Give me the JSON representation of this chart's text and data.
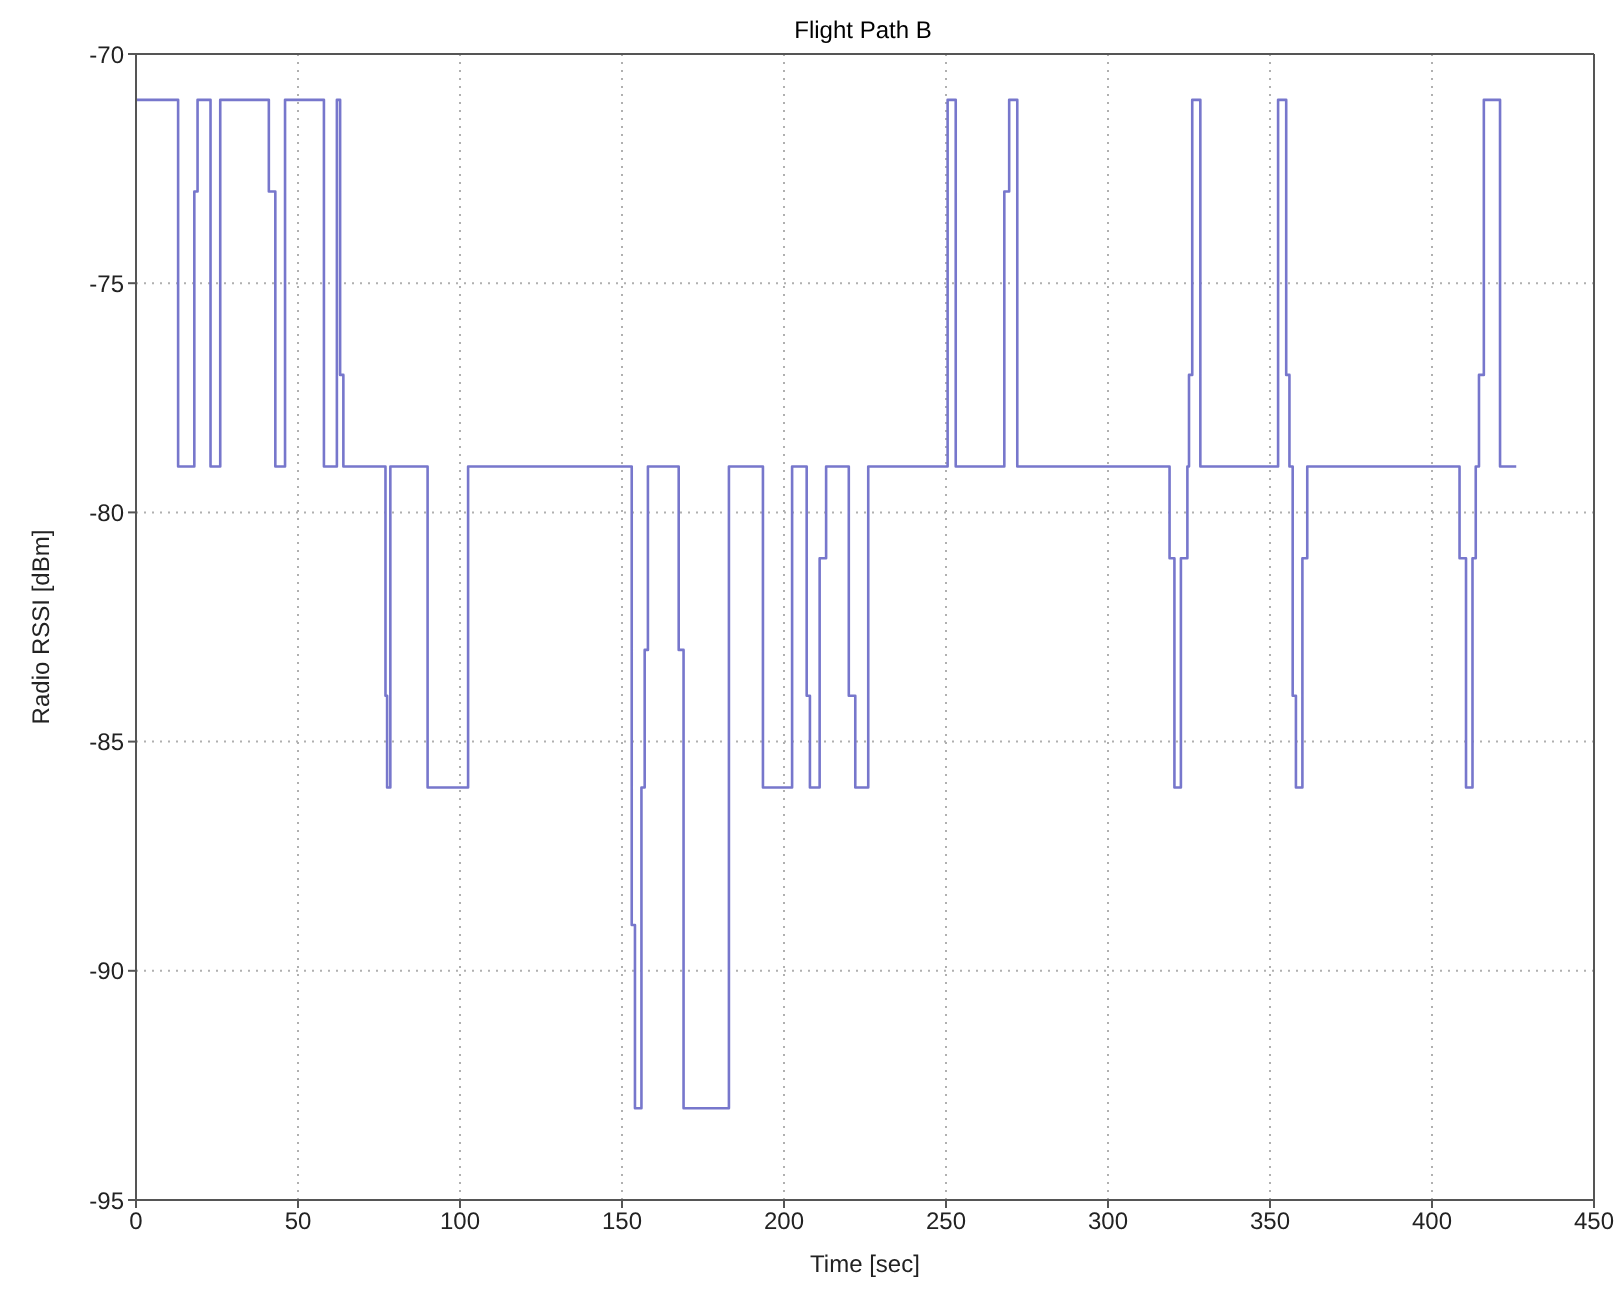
{
  "chart_data": {
    "type": "step",
    "title": "Flight Path B",
    "xlabel": "Time  [sec]",
    "ylabel": "Radio RSSI  [dBm]",
    "x": [
      0,
      13,
      18,
      19,
      23,
      26,
      41,
      43,
      46,
      58,
      62,
      63,
      64,
      77,
      77.5,
      78.5,
      90,
      102.5,
      153,
      154,
      156,
      157,
      158,
      167.5,
      169,
      183,
      193.5,
      202.5,
      207,
      208,
      211,
      213,
      220,
      222,
      226,
      250.5,
      253,
      268,
      269.5,
      272,
      319,
      320.5,
      322.5,
      324.5,
      325,
      326,
      328.5,
      352.5,
      355,
      356,
      357,
      358,
      360,
      361.5,
      408.5,
      410.5,
      412.5,
      413.5,
      414.5,
      416,
      421,
      426
    ],
    "values": [
      -71,
      -79,
      -73,
      -71,
      -79,
      -71,
      -73,
      -79,
      -71,
      -79,
      -71,
      -77,
      -79,
      -84,
      -86,
      -79,
      -86,
      -79,
      -89,
      -93,
      -86,
      -83,
      -79,
      -83,
      -93,
      -79,
      -86,
      -79,
      -84,
      -86,
      -81,
      -79,
      -84,
      -86,
      -79,
      -71,
      -79,
      -73,
      -71,
      -79,
      -81,
      -86,
      -81,
      -79,
      -77,
      -71,
      -79,
      -71,
      -77,
      -79,
      -84,
      -86,
      -81,
      -79,
      -81,
      -86,
      -81,
      -79,
      -77,
      -71,
      -79,
      -79
    ],
    "color": "#7777cc",
    "xlim": [
      0,
      450
    ],
    "xticks": [
      0,
      50,
      100,
      150,
      200,
      250,
      300,
      350,
      400,
      450
    ],
    "ylim": [
      -95,
      -70
    ],
    "yticks": [
      -95,
      -90,
      -85,
      -80,
      -75,
      -70
    ],
    "grid": true
  }
}
